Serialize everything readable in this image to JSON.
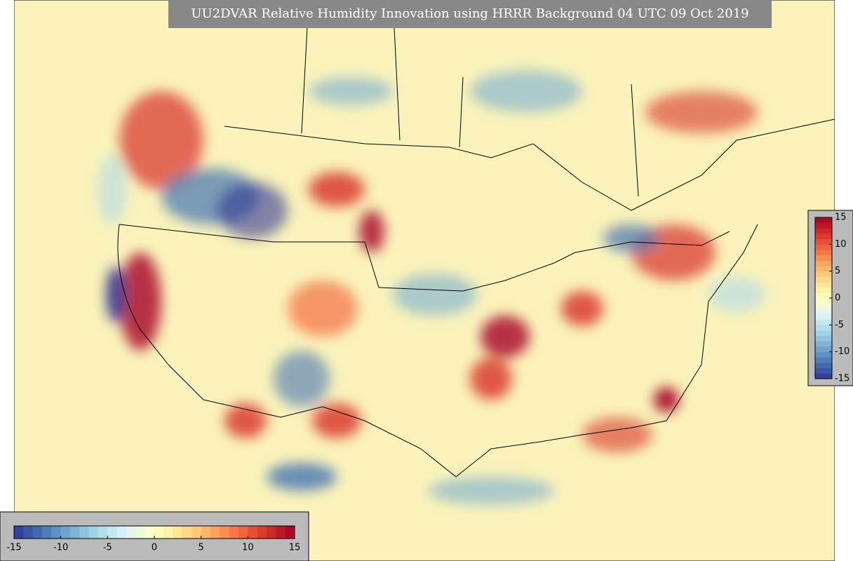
{
  "title": "UU2DVAR Relative Humidity Innovation using HRRR Background 04 UTC 09 Oct 2019",
  "colormap": [
    "#313695",
    "#4575b4",
    "#74add1",
    "#abd9e9",
    "#e0f3f8",
    "#ffffbf",
    "#fee090",
    "#fdae61",
    "#f46d43",
    "#d73027",
    "#a50026"
  ],
  "colorbars": [
    {
      "orientation": "horizontal",
      "range": [
        -15,
        15
      ],
      "ticks": [
        -15,
        -10,
        -5,
        0,
        5,
        10,
        15
      ]
    },
    {
      "orientation": "vertical",
      "range": [
        -15,
        15
      ],
      "ticks": [
        -15,
        -10,
        -5,
        0,
        5,
        10,
        15
      ]
    }
  ]
}
